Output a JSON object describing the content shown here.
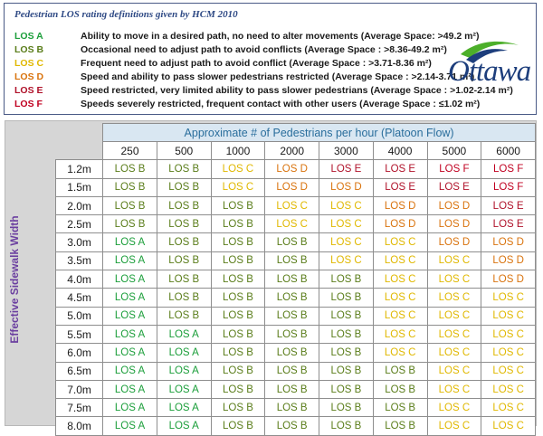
{
  "legend": {
    "title": "Pedestrian LOS rating definitions given by HCM 2010",
    "rows": [
      {
        "code": "LOS A",
        "color": "#1b9e3a",
        "desc": "Ability to move in a desired path, no need to alter movements (Average Space:  >49.2 m²)"
      },
      {
        "code": "LOS B",
        "color": "#5a7d1a",
        "desc": "Occasional need to adjust path to avoid conflicts (Average  Space : >8.36-49.2  m²)"
      },
      {
        "code": "LOS C",
        "color": "#e0b800",
        "desc": "Frequent need to adjust path to avoid conflict (Average  Space : >3.71-8.36  m²)"
      },
      {
        "code": "LOS D",
        "color": "#d9730d",
        "desc": "Speed and ability to pass slower pedestrians restricted (Average  Space : >2.14-3.71  m²)"
      },
      {
        "code": "LOS E",
        "color": "#b0122a",
        "desc": "Speed restricted, very limited ability to pass slower pedestrians (Average  Space : >1.02-2.14  m²)"
      },
      {
        "code": "LOS F",
        "color": "#c00020",
        "desc": "Speeds severely restricted, frequent contact with other users (Average  Space : ≤1.02  m²)"
      }
    ]
  },
  "logo": {
    "text": "Ottawa",
    "icon": "ottawa-swoosh-logo",
    "colors": {
      "blue": "#1d3e7c",
      "green": "#4caf2a"
    }
  },
  "table": {
    "top_header": "Approximate # of Pedestrians per hour (Platoon Flow)",
    "side_header": "Effective Sidewalk Width",
    "volumes": [
      "250",
      "500",
      "1000",
      "2000",
      "3000",
      "4000",
      "5000",
      "6000"
    ],
    "rows": [
      {
        "width": "1.2m",
        "cells": [
          "LOS B",
          "LOS B",
          "LOS C",
          "LOS D",
          "LOS E",
          "LOS E",
          "LOS F",
          "LOS F"
        ]
      },
      {
        "width": "1.5m",
        "cells": [
          "LOS B",
          "LOS B",
          "LOS C",
          "LOS D",
          "LOS D",
          "LOS E",
          "LOS E",
          "LOS F"
        ]
      },
      {
        "width": "2.0m",
        "cells": [
          "LOS B",
          "LOS B",
          "LOS B",
          "LOS C",
          "LOS C",
          "LOS D",
          "LOS D",
          "LOS E"
        ]
      },
      {
        "width": "2.5m",
        "cells": [
          "LOS B",
          "LOS B",
          "LOS B",
          "LOS C",
          "LOS C",
          "LOS D",
          "LOS D",
          "LOS E"
        ]
      },
      {
        "width": "3.0m",
        "cells": [
          "LOS A",
          "LOS B",
          "LOS B",
          "LOS B",
          "LOS C",
          "LOS C",
          "LOS D",
          "LOS D"
        ]
      },
      {
        "width": "3.5m",
        "cells": [
          "LOS A",
          "LOS B",
          "LOS B",
          "LOS B",
          "LOS C",
          "LOS C",
          "LOS C",
          "LOS D"
        ]
      },
      {
        "width": "4.0m",
        "cells": [
          "LOS A",
          "LOS B",
          "LOS B",
          "LOS B",
          "LOS B",
          "LOS C",
          "LOS C",
          "LOS D"
        ]
      },
      {
        "width": "4.5m",
        "cells": [
          "LOS A",
          "LOS B",
          "LOS B",
          "LOS B",
          "LOS B",
          "LOS C",
          "LOS C",
          "LOS C"
        ]
      },
      {
        "width": "5.0m",
        "cells": [
          "LOS A",
          "LOS B",
          "LOS B",
          "LOS B",
          "LOS B",
          "LOS C",
          "LOS C",
          "LOS C"
        ]
      },
      {
        "width": "5.5m",
        "cells": [
          "LOS A",
          "LOS A",
          "LOS B",
          "LOS B",
          "LOS B",
          "LOS C",
          "LOS C",
          "LOS C"
        ]
      },
      {
        "width": "6.0m",
        "cells": [
          "LOS A",
          "LOS A",
          "LOS B",
          "LOS B",
          "LOS B",
          "LOS C",
          "LOS C",
          "LOS C"
        ]
      },
      {
        "width": "6.5m",
        "cells": [
          "LOS A",
          "LOS A",
          "LOS B",
          "LOS B",
          "LOS B",
          "LOS B",
          "LOS C",
          "LOS C"
        ]
      },
      {
        "width": "7.0m",
        "cells": [
          "LOS A",
          "LOS A",
          "LOS B",
          "LOS B",
          "LOS B",
          "LOS B",
          "LOS C",
          "LOS C"
        ]
      },
      {
        "width": "7.5m",
        "cells": [
          "LOS A",
          "LOS A",
          "LOS B",
          "LOS B",
          "LOS B",
          "LOS B",
          "LOS C",
          "LOS C"
        ]
      },
      {
        "width": "8.0m",
        "cells": [
          "LOS A",
          "LOS A",
          "LOS B",
          "LOS B",
          "LOS B",
          "LOS B",
          "LOS C",
          "LOS C"
        ]
      }
    ]
  },
  "los_colors": {
    "LOS A": "#1b9e3a",
    "LOS B": "#5a7d1a",
    "LOS C": "#e0b800",
    "LOS D": "#d9730d",
    "LOS E": "#b0122a",
    "LOS F": "#c00020"
  }
}
